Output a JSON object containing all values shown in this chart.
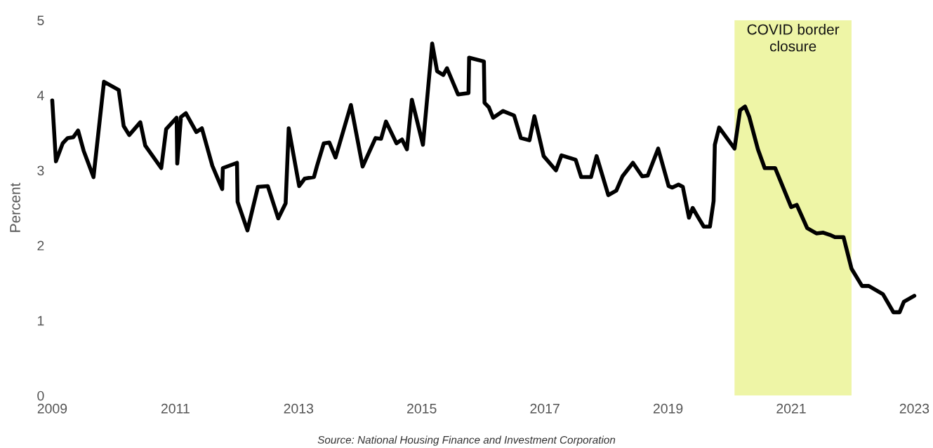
{
  "chart_data": {
    "type": "line",
    "ylabel": "Percent",
    "annotations": [
      "Source: National Housing Finance and Investment Corporation"
    ],
    "x": [
      2009.0,
      2009.06,
      2009.17,
      2009.25,
      2009.34,
      2009.42,
      2009.51,
      2009.67,
      2009.84,
      2010.08,
      2010.16,
      2010.25,
      2010.43,
      2010.51,
      2010.77,
      2010.85,
      2011.02,
      2011.03,
      2011.09,
      2011.17,
      2011.34,
      2011.43,
      2011.6,
      2011.76,
      2011.77,
      2012.0,
      2012.01,
      2012.17,
      2012.34,
      2012.5,
      2012.67,
      2012.79,
      2012.84,
      2013.01,
      2013.1,
      2013.25,
      2013.3,
      2013.41,
      2013.5,
      2013.6,
      2013.85,
      2014.04,
      2014.25,
      2014.34,
      2014.42,
      2014.59,
      2014.68,
      2014.76,
      2014.84,
      2015.02,
      2015.17,
      2015.25,
      2015.35,
      2015.41,
      2015.59,
      2015.76,
      2015.77,
      2016.01,
      2016.02,
      2016.09,
      2016.16,
      2016.32,
      2016.5,
      2016.61,
      2016.75,
      2016.83,
      2016.98,
      2017.18,
      2017.27,
      2017.5,
      2017.59,
      2017.75,
      2017.84,
      2018.03,
      2018.16,
      2018.26,
      2018.43,
      2018.58,
      2018.67,
      2018.84,
      2019.01,
      2019.07,
      2019.17,
      2019.24,
      2019.34,
      2019.4,
      2019.47,
      2019.58,
      2019.68,
      2019.74,
      2019.76,
      2019.83,
      2020.08,
      2020.17,
      2020.25,
      2020.32,
      2020.46,
      2020.57,
      2020.74,
      2021.0,
      2021.09,
      2021.14,
      2021.26,
      2021.41,
      2021.52,
      2021.63,
      2021.71,
      2021.85,
      2021.98,
      2022.15,
      2022.26,
      2022.49,
      2022.66,
      2022.76,
      2022.83,
      2023.0
    ],
    "series": [
      {
        "color": "#000000",
        "values": [
          3.93,
          3.12,
          3.36,
          3.43,
          3.44,
          3.53,
          3.26,
          2.91,
          4.18,
          4.07,
          3.59,
          3.47,
          3.64,
          3.33,
          3.03,
          3.55,
          3.7,
          3.09,
          3.71,
          3.76,
          3.51,
          3.56,
          3.06,
          2.75,
          3.03,
          3.1,
          2.58,
          2.2,
          2.78,
          2.79,
          2.36,
          2.56,
          3.56,
          2.79,
          2.89,
          2.91,
          3.06,
          3.36,
          3.37,
          3.17,
          3.87,
          3.05,
          3.43,
          3.42,
          3.65,
          3.36,
          3.41,
          3.28,
          3.94,
          3.34,
          4.69,
          4.32,
          4.27,
          4.36,
          4.01,
          4.03,
          4.5,
          4.45,
          3.9,
          3.84,
          3.7,
          3.79,
          3.73,
          3.43,
          3.4,
          3.72,
          3.19,
          3.0,
          3.2,
          3.14,
          2.91,
          2.91,
          3.19,
          2.67,
          2.73,
          2.92,
          3.1,
          2.92,
          2.93,
          3.29,
          2.79,
          2.77,
          2.81,
          2.78,
          2.37,
          2.5,
          2.4,
          2.25,
          2.25,
          2.59,
          3.34,
          3.57,
          3.29,
          3.8,
          3.85,
          3.71,
          3.28,
          3.03,
          3.03,
          2.51,
          2.54,
          2.45,
          2.23,
          2.16,
          2.17,
          2.14,
          2.11,
          2.11,
          1.69,
          1.46,
          1.46,
          1.35,
          1.11,
          1.11,
          1.25,
          1.33
        ]
      }
    ],
    "xlim": [
      2009,
      2023
    ],
    "xticks": [
      2009,
      2011,
      2013,
      2015,
      2017,
      2019,
      2021,
      2023
    ],
    "ylim": [
      0,
      5
    ],
    "yticks": [
      0,
      1,
      2,
      3,
      4,
      5
    ],
    "bands": [
      {
        "axis": "x",
        "from": 2020.08,
        "to": 2021.98,
        "label": "COVID border closure",
        "color": "#eef5a6"
      }
    ],
    "grid": false,
    "marker": "none",
    "line_style": "solid"
  }
}
